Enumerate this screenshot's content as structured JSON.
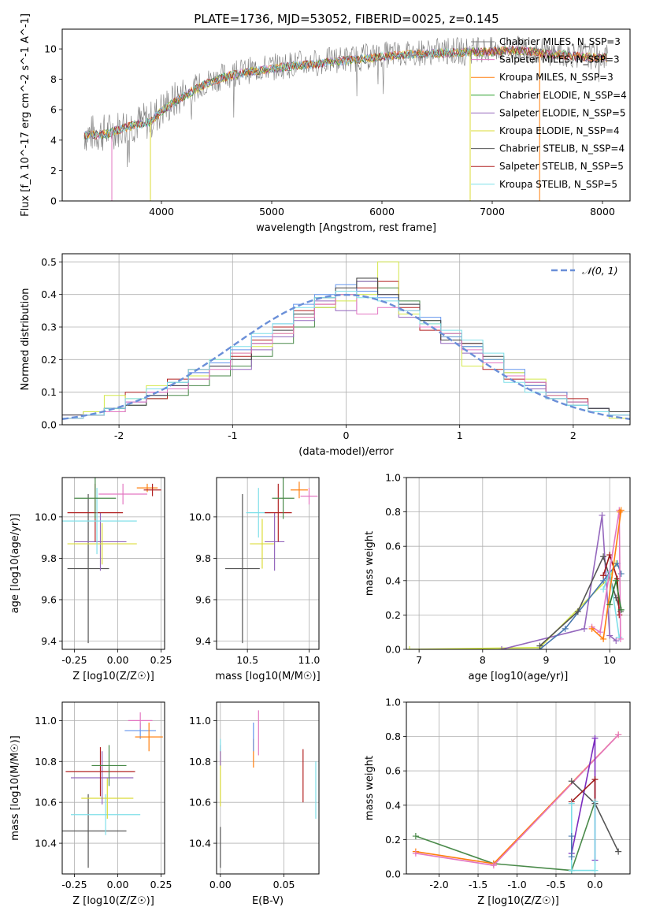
{
  "figure": {
    "title": "PLATE=1736, MJD=53052, FIBERID=0025, z=0.145"
  },
  "chart_data": [
    {
      "id": "spectrum",
      "type": "line",
      "xlabel": "wavelength [Angstrom, rest frame]",
      "ylabel": "Flux [f_λ 10^-17 erg cm^-2 s^-1 A^-1]",
      "xlim": [
        3100,
        8250
      ],
      "ylim": [
        0,
        11.3
      ],
      "xticks": [
        4000,
        5000,
        6000,
        7000,
        8000
      ],
      "yticks": [
        0,
        2,
        4,
        6,
        8,
        10
      ],
      "grid": false,
      "legend_position": "top-right",
      "observed_envelope": {
        "x": [
          3300,
          3500,
          3700,
          3900,
          4000,
          4200,
          4400,
          4600,
          4800,
          5000,
          5200,
          5400,
          5600,
          5800,
          6000,
          6200,
          6400,
          6600,
          6800,
          7000,
          7200,
          7400,
          7600,
          7800,
          8000
        ],
        "y": [
          4.4,
          4.5,
          5.0,
          5.3,
          6.0,
          7.0,
          7.8,
          8.3,
          8.6,
          8.8,
          9.0,
          9.1,
          9.3,
          9.4,
          9.6,
          9.7,
          9.8,
          9.85,
          9.9,
          9.9,
          10.0,
          9.9,
          9.7,
          9.6,
          9.5
        ]
      },
      "series": [
        {
          "name": "Chabrier MILES, N_SSP=3",
          "color": "#808080"
        },
        {
          "name": "Salpeter MILES, N_SSP=3",
          "color": "#e377c2"
        },
        {
          "name": "Kroupa MILES, N_SSP=3",
          "color": "#ff7f0e"
        },
        {
          "name": "Chabrier ELODIE, N_SSP=4",
          "color": "#2ca02c"
        },
        {
          "name": "Salpeter ELODIE, N_SSP=5",
          "color": "#9467bd"
        },
        {
          "name": "Kroupa ELODIE, N_SSP=4",
          "color": "#dbdb36"
        },
        {
          "name": "Chabrier STELIB, N_SSP=4",
          "color": "#555555"
        },
        {
          "name": "Salpeter STELIB, N_SSP=5",
          "color": "#b22222"
        },
        {
          "name": "Kroupa STELIB, N_SSP=5",
          "color": "#7fdfe8"
        }
      ]
    },
    {
      "id": "residuals",
      "type": "line",
      "xlabel": "(data-model)/error",
      "ylabel": "Normed distribution",
      "xlim": [
        -2.5,
        2.5
      ],
      "ylim": [
        0,
        0.525
      ],
      "xticks": [
        -2,
        -1,
        0,
        1,
        2
      ],
      "yticks": [
        0.0,
        0.1,
        0.2,
        0.3,
        0.4,
        0.5
      ],
      "grid": true,
      "legend_position": "top-right",
      "reference": {
        "name": "𝒩(0, 1)",
        "mean": 0,
        "sigma": 1,
        "color": "#6a8fd8"
      },
      "hist_series": [
        {
          "color": "#4a8a4a",
          "values": [
            0.02,
            0.03,
            0.04,
            0.06,
            0.08,
            0.09,
            0.12,
            0.15,
            0.18,
            0.21,
            0.25,
            0.3,
            0.36,
            0.4,
            0.44,
            0.42,
            0.38,
            0.32,
            0.28,
            0.24,
            0.2,
            0.16,
            0.12,
            0.09,
            0.07,
            0.05,
            0.03
          ]
        },
        {
          "color": "#9467bd",
          "values": [
            0.03,
            0.04,
            0.05,
            0.07,
            0.1,
            0.12,
            0.16,
            0.18,
            0.17,
            0.23,
            0.27,
            0.32,
            0.38,
            0.35,
            0.44,
            0.4,
            0.33,
            0.3,
            0.25,
            0.22,
            0.19,
            0.15,
            0.11,
            0.08,
            0.06,
            0.04,
            0.03
          ]
        },
        {
          "color": "#b22222",
          "values": [
            0.02,
            0.03,
            0.05,
            0.1,
            0.08,
            0.14,
            0.17,
            0.19,
            0.21,
            0.26,
            0.3,
            0.35,
            0.37,
            0.41,
            0.42,
            0.44,
            0.36,
            0.29,
            0.26,
            0.25,
            0.17,
            0.14,
            0.12,
            0.1,
            0.08,
            0.05,
            0.04
          ]
        },
        {
          "color": "#d4e84a",
          "values": [
            0.02,
            0.04,
            0.09,
            0.08,
            0.12,
            0.13,
            0.15,
            0.2,
            0.22,
            0.24,
            0.28,
            0.33,
            0.36,
            0.38,
            0.4,
            0.5,
            0.34,
            0.31,
            0.27,
            0.18,
            0.2,
            0.16,
            0.14,
            0.09,
            0.06,
            0.04,
            0.02
          ]
        },
        {
          "color": "#6495ed",
          "values": [
            0.02,
            0.03,
            0.05,
            0.07,
            0.09,
            0.13,
            0.16,
            0.19,
            0.23,
            0.27,
            0.31,
            0.37,
            0.4,
            0.43,
            0.41,
            0.39,
            0.37,
            0.33,
            0.27,
            0.24,
            0.2,
            0.17,
            0.12,
            0.1,
            0.06,
            0.05,
            0.03
          ]
        },
        {
          "color": "#404040",
          "values": [
            0.03,
            0.03,
            0.05,
            0.06,
            0.09,
            0.12,
            0.14,
            0.18,
            0.2,
            0.25,
            0.29,
            0.34,
            0.39,
            0.42,
            0.45,
            0.4,
            0.37,
            0.32,
            0.26,
            0.25,
            0.21,
            0.15,
            0.13,
            0.08,
            0.07,
            0.05,
            0.04
          ]
        },
        {
          "color": "#e377c2",
          "values": [
            0.02,
            0.03,
            0.04,
            0.07,
            0.1,
            0.11,
            0.14,
            0.17,
            0.22,
            0.25,
            0.28,
            0.33,
            0.37,
            0.4,
            0.34,
            0.36,
            0.35,
            0.3,
            0.28,
            0.23,
            0.19,
            0.15,
            0.13,
            0.09,
            0.07,
            0.04,
            0.03
          ]
        },
        {
          "color": "#7fdfe8",
          "values": [
            0.02,
            0.03,
            0.05,
            0.08,
            0.11,
            0.13,
            0.17,
            0.2,
            0.24,
            0.28,
            0.31,
            0.36,
            0.39,
            0.41,
            0.39,
            0.38,
            0.35,
            0.31,
            0.29,
            0.26,
            0.22,
            0.13,
            0.1,
            0.08,
            0.06,
            0.04,
            0.03
          ]
        }
      ]
    },
    {
      "id": "age_vs_Z",
      "type": "scatter",
      "xlabel": "Z [log10(Z/Z☉)]",
      "ylabel": "age [log10(age/yr)]",
      "xlim": [
        -0.32,
        0.27
      ],
      "ylim": [
        9.36,
        10.19
      ],
      "xticks": [
        -0.25,
        0.0,
        0.25
      ],
      "yticks": [
        9.4,
        9.6,
        9.8,
        10.0
      ],
      "grid": true,
      "points": [
        {
          "x": -0.17,
          "xerr": 0.12,
          "y": 9.75,
          "yerr": 0.36,
          "color": "#555555"
        },
        {
          "x": -0.1,
          "xerr": 0.15,
          "y": 9.88,
          "yerr": 0.14,
          "color": "#9467bd"
        },
        {
          "x": -0.09,
          "xerr": 0.2,
          "y": 9.87,
          "yerr": 0.1,
          "color": "#dbdb36"
        },
        {
          "x": -0.13,
          "xerr": 0.16,
          "y": 10.02,
          "yerr": 0.14,
          "color": "#b22222"
        },
        {
          "x": -0.12,
          "xerr": 0.23,
          "y": 9.98,
          "yerr": 0.16,
          "color": "#7fdfe8"
        },
        {
          "x": -0.13,
          "xerr": 0.12,
          "y": 10.09,
          "yerr": 0.1,
          "color": "#4a8a4a"
        },
        {
          "x": 0.03,
          "xerr": 0.14,
          "y": 10.11,
          "yerr": 0.05,
          "color": "#e377c2"
        },
        {
          "x": 0.17,
          "xerr": 0.06,
          "y": 10.14,
          "yerr": 0.02,
          "color": "#ff7f0e"
        },
        {
          "x": 0.2,
          "xerr": 0.05,
          "y": 10.13,
          "yerr": 0.03,
          "color": "#b22222"
        }
      ]
    },
    {
      "id": "age_vs_mass",
      "type": "scatter",
      "xlabel": "mass [log10(M/M☉)]",
      "ylabel": "",
      "xlim": [
        10.25,
        11.08
      ],
      "ylim": [
        9.36,
        10.19
      ],
      "xticks": [
        10.5,
        11.0
      ],
      "yticks": [
        9.4,
        9.6,
        9.8,
        10.0
      ],
      "grid": true,
      "points": [
        {
          "x": 10.46,
          "xerr": 0.14,
          "y": 9.75,
          "yerr": 0.36,
          "color": "#555555"
        },
        {
          "x": 10.62,
          "xerr": 0.1,
          "y": 9.87,
          "yerr": 0.12,
          "color": "#dbdb36"
        },
        {
          "x": 10.72,
          "xerr": 0.08,
          "y": 9.88,
          "yerr": 0.14,
          "color": "#9467bd"
        },
        {
          "x": 10.59,
          "xerr": 0.1,
          "y": 10.02,
          "yerr": 0.12,
          "color": "#7fdfe8"
        },
        {
          "x": 10.75,
          "xerr": 0.11,
          "y": 10.02,
          "yerr": 0.14,
          "color": "#b22222"
        },
        {
          "x": 10.79,
          "xerr": 0.09,
          "y": 10.09,
          "yerr": 0.1,
          "color": "#4a8a4a"
        },
        {
          "x": 10.92,
          "xerr": 0.07,
          "y": 10.13,
          "yerr": 0.04,
          "color": "#ff7f0e"
        },
        {
          "x": 11.0,
          "xerr": 0.07,
          "y": 10.1,
          "yerr": 0.04,
          "color": "#e377c2"
        }
      ]
    },
    {
      "id": "mass_vs_Z",
      "type": "scatter",
      "xlabel": "Z [log10(Z/Z☉)]",
      "ylabel": "mass [log10(M/M☉)]",
      "xlim": [
        -0.32,
        0.27
      ],
      "ylim": [
        10.25,
        11.09
      ],
      "xticks": [
        -0.25,
        0.0,
        0.25
      ],
      "yticks": [
        10.4,
        10.6,
        10.8,
        11.0
      ],
      "grid": true,
      "points": [
        {
          "x": -0.17,
          "xerr": 0.22,
          "y": 10.46,
          "yerr": 0.18,
          "color": "#555555"
        },
        {
          "x": -0.07,
          "xerr": 0.2,
          "y": 10.54,
          "yerr": 0.1,
          "color": "#7fdfe8"
        },
        {
          "x": -0.06,
          "xerr": 0.15,
          "y": 10.62,
          "yerr": 0.1,
          "color": "#dbdb36"
        },
        {
          "x": -0.09,
          "xerr": 0.18,
          "y": 10.72,
          "yerr": 0.13,
          "color": "#9467bd"
        },
        {
          "x": -0.1,
          "xerr": 0.2,
          "y": 10.75,
          "yerr": 0.12,
          "color": "#b22222"
        },
        {
          "x": -0.05,
          "xerr": 0.1,
          "y": 10.78,
          "yerr": 0.1,
          "color": "#4a8a4a"
        },
        {
          "x": 0.13,
          "xerr": 0.09,
          "y": 10.95,
          "yerr": 0.04,
          "color": "#6495ed"
        },
        {
          "x": 0.18,
          "xerr": 0.08,
          "y": 10.92,
          "yerr": 0.07,
          "color": "#ff7f0e"
        },
        {
          "x": 0.13,
          "xerr": 0.07,
          "y": 11.0,
          "yerr": 0.04,
          "color": "#e377c2"
        }
      ]
    },
    {
      "id": "mass_vs_EBV",
      "type": "scatter",
      "xlabel": "E(B-V)",
      "ylabel": "",
      "xlim": [
        -0.003,
        0.0775
      ],
      "ylim": [
        10.25,
        11.09
      ],
      "xticks": [
        0.0,
        0.05
      ],
      "yticks": [
        10.4,
        10.6,
        10.8,
        11.0
      ],
      "grid": true,
      "points": [
        {
          "x": 0.0,
          "y": 10.38,
          "yerr": 0.1,
          "color": "#555555"
        },
        {
          "x": 0.0,
          "y": 10.72,
          "yerr": 0.14,
          "color": "#dbdb36"
        },
        {
          "x": 0.0,
          "y": 10.83,
          "yerr": 0.05,
          "color": "#9467bd"
        },
        {
          "x": 0.0,
          "y": 10.88,
          "yerr": 0.03,
          "color": "#7fdfe8"
        },
        {
          "x": 0.026,
          "y": 10.84,
          "yerr": 0.07,
          "color": "#ff7f0e"
        },
        {
          "x": 0.026,
          "y": 10.92,
          "yerr": 0.07,
          "color": "#6495ed"
        },
        {
          "x": 0.03,
          "y": 10.94,
          "yerr": 0.11,
          "color": "#e377c2"
        },
        {
          "x": 0.065,
          "y": 10.73,
          "yerr": 0.13,
          "color": "#b22222"
        },
        {
          "x": 0.075,
          "y": 10.66,
          "yerr": 0.14,
          "color": "#7fdfe8"
        }
      ]
    },
    {
      "id": "weight_vs_age",
      "type": "line",
      "xlabel": "age [log10(age/yr)]",
      "ylabel": "mass weight",
      "xlim": [
        6.8,
        10.32
      ],
      "ylim": [
        0,
        1.0
      ],
      "xticks": [
        7,
        8,
        9,
        10
      ],
      "yticks": [
        0.0,
        0.2,
        0.4,
        0.6,
        0.8,
        1.0
      ],
      "grid": true,
      "series": [
        {
          "color": "#d4e84a",
          "x": [
            6.85,
            8.9,
            10.0,
            10.1
          ],
          "y": [
            0.0,
            0.01,
            0.42,
            0.5
          ]
        },
        {
          "color": "#9467bd",
          "x": [
            8.3,
            9.6,
            9.88,
            10.0,
            10.1
          ],
          "y": [
            0.0,
            0.12,
            0.78,
            0.08,
            0.05
          ]
        },
        {
          "color": "#4a7ab0",
          "x": [
            8.9,
            9.3,
            9.9,
            10.12,
            10.18
          ],
          "y": [
            0.0,
            0.12,
            0.4,
            0.5,
            0.44
          ]
        },
        {
          "color": "#555555",
          "x": [
            8.9,
            9.5,
            9.9,
            10.1,
            10.17
          ],
          "y": [
            0.02,
            0.22,
            0.54,
            0.3,
            0.22
          ]
        },
        {
          "color": "#a01a1a",
          "x": [
            9.9,
            10.0,
            10.12,
            10.15
          ],
          "y": [
            0.43,
            0.55,
            0.41,
            0.2
          ]
        },
        {
          "color": "#7fdfe8",
          "x": [
            9.9,
            10.0,
            10.15
          ],
          "y": [
            0.35,
            0.45,
            0.07
          ]
        },
        {
          "color": "#e377c2",
          "x": [
            9.72,
            9.85,
            10.15,
            10.17
          ],
          "y": [
            0.13,
            0.1,
            0.81,
            0.06
          ]
        },
        {
          "color": "#ff7f0e",
          "x": [
            9.72,
            9.9,
            10.18,
            10.16
          ],
          "y": [
            0.12,
            0.06,
            0.81,
            0.8
          ]
        },
        {
          "color": "#2e7d32",
          "x": [
            10.0,
            10.1,
            10.18
          ],
          "y": [
            0.26,
            0.4,
            0.23
          ]
        }
      ]
    },
    {
      "id": "weight_vs_Z",
      "type": "line",
      "xlabel": "Z [log10(Z/Z☉)]",
      "ylabel": "mass weight",
      "xlim": [
        -2.42,
        0.45
      ],
      "ylim": [
        0,
        1.0
      ],
      "xticks": [
        -2.0,
        -1.5,
        -1.0,
        -0.5,
        0.0
      ],
      "yticks": [
        0.0,
        0.2,
        0.4,
        0.6,
        0.8,
        1.0
      ],
      "grid": true,
      "series": [
        {
          "color": "#4a8a4a",
          "x": [
            -2.3,
            -1.3,
            -0.3,
            -0.3,
            0.0
          ],
          "y": [
            0.22,
            0.06,
            0.02,
            0.02,
            0.42
          ]
        },
        {
          "color": "#ff7f0e",
          "x": [
            -2.3,
            -1.3,
            0.3
          ],
          "y": [
            0.13,
            0.06,
            0.81
          ]
        },
        {
          "color": "#e377c2",
          "x": [
            -2.3,
            -1.3,
            0.3
          ],
          "y": [
            0.12,
            0.05,
            0.81
          ]
        },
        {
          "color": "#555555",
          "x": [
            -0.3,
            0.0,
            0.3
          ],
          "y": [
            0.54,
            0.41,
            0.13
          ]
        },
        {
          "color": "#7b2cbf",
          "x": [
            -0.3,
            0.0,
            0.0
          ],
          "y": [
            0.12,
            0.79,
            0.08
          ]
        },
        {
          "color": "#a01a1a",
          "x": [
            -0.3,
            0.0,
            0.0
          ],
          "y": [
            0.42,
            0.55,
            0.42
          ]
        },
        {
          "color": "#7fdfe8",
          "x": [
            -0.3,
            -0.3,
            0.0,
            0.0
          ],
          "y": [
            0.41,
            0.02,
            0.02,
            0.42
          ]
        },
        {
          "color": "#4a7ab0",
          "x": [
            -0.3,
            -0.3
          ],
          "y": [
            0.1,
            0.22
          ]
        }
      ]
    }
  ]
}
